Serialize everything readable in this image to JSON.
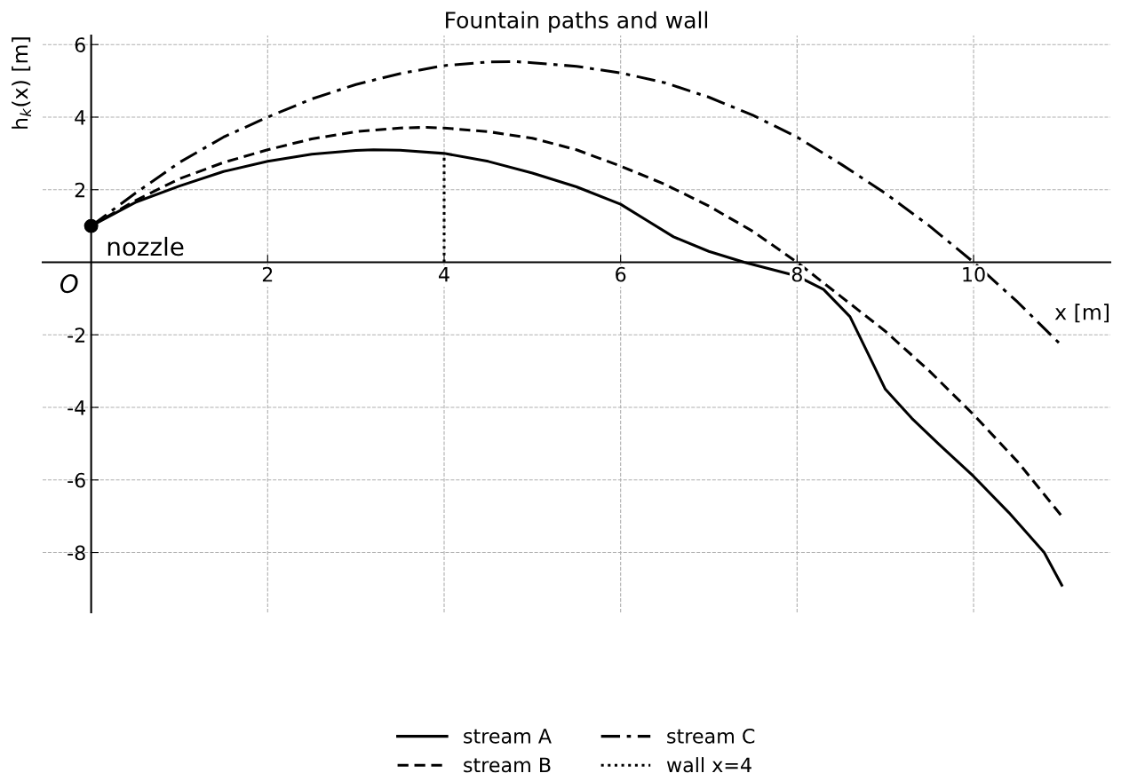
{
  "chart_data": {
    "type": "line",
    "title": "Fountain paths and wall",
    "xlabel": "x [m]",
    "ylabel": "h$_{k}$(x) [m]",
    "series": [
      {
        "name": "stream A",
        "color": "#000000",
        "line_style": "solid",
        "x": [
          0,
          0.5,
          1,
          1.5,
          2,
          2.5,
          3,
          3.2,
          3.5,
          4,
          4.5,
          5,
          5.5,
          6,
          6.3,
          6.6,
          7,
          7.4,
          8,
          8.3,
          8.6,
          8.8,
          9,
          9.3,
          9.6,
          10,
          10.4,
          10.8,
          11
        ],
        "values": [
          1,
          1.65,
          2.1,
          2.5,
          2.78,
          2.98,
          3.08,
          3.1,
          3.09,
          3.0,
          2.78,
          2.46,
          2.08,
          1.6,
          1.15,
          0.7,
          0.3,
          0.0,
          -0.38,
          -0.75,
          -1.5,
          -2.5,
          -3.5,
          -4.3,
          -5.0,
          -5.9,
          -6.9,
          -8.0,
          -8.9
        ]
      },
      {
        "name": "stream B",
        "color": "#000000",
        "line_style": "dashed",
        "x": [
          0,
          0.5,
          1,
          1.5,
          2,
          2.5,
          3,
          3.5,
          3.8,
          4,
          4.5,
          5,
          5.5,
          6,
          6.5,
          7,
          7.5,
          8,
          8.5,
          9,
          9.5,
          10,
          10.5,
          11
        ],
        "values": [
          1,
          1.7,
          2.3,
          2.75,
          3.1,
          3.4,
          3.6,
          3.7,
          3.72,
          3.7,
          3.6,
          3.42,
          3.1,
          2.65,
          2.15,
          1.55,
          0.85,
          0.0,
          -0.95,
          -1.9,
          -3.0,
          -4.2,
          -5.5,
          -7.0
        ]
      },
      {
        "name": "stream C",
        "color": "#000000",
        "line_style": "dashdot",
        "x": [
          0,
          0.5,
          1,
          1.5,
          2,
          2.5,
          3,
          3.5,
          4,
          4.5,
          4.8,
          5,
          5.5,
          6,
          6.5,
          7,
          7.5,
          8,
          8.5,
          9,
          9.5,
          10,
          10.5,
          11
        ],
        "values": [
          1,
          1.9,
          2.75,
          3.45,
          4.0,
          4.5,
          4.9,
          5.2,
          5.42,
          5.52,
          5.53,
          5.5,
          5.4,
          5.22,
          4.95,
          4.55,
          4.05,
          3.45,
          2.7,
          1.9,
          1.0,
          0.0,
          -1.1,
          -2.3
        ]
      },
      {
        "name": "wall x=4",
        "color": "#000000",
        "line_style": "dotted",
        "x": [
          4,
          4
        ],
        "values": [
          0,
          3.0
        ]
      },
      {
        "type": "scatter",
        "color": "#000000",
        "marker": "circle",
        "x": [
          0
        ],
        "values": [
          1
        ]
      }
    ],
    "annotations": [
      {
        "text": "nozzle",
        "x": 0,
        "y": 1
      },
      "O"
    ],
    "xlim": [
      -0.55,
      11.55
    ],
    "ylim": [
      -9.65,
      6.25
    ],
    "xticks": [
      2,
      4,
      6,
      8,
      10
    ],
    "yticks": [
      {
        "value": -8,
        "label": "-8"
      },
      {
        "value": -6,
        "label": "-6"
      },
      {
        "value": -4,
        "label": "-4"
      },
      {
        "value": -2,
        "label": "-2"
      },
      2,
      4,
      6
    ],
    "grid": true,
    "legend": "bottom"
  }
}
